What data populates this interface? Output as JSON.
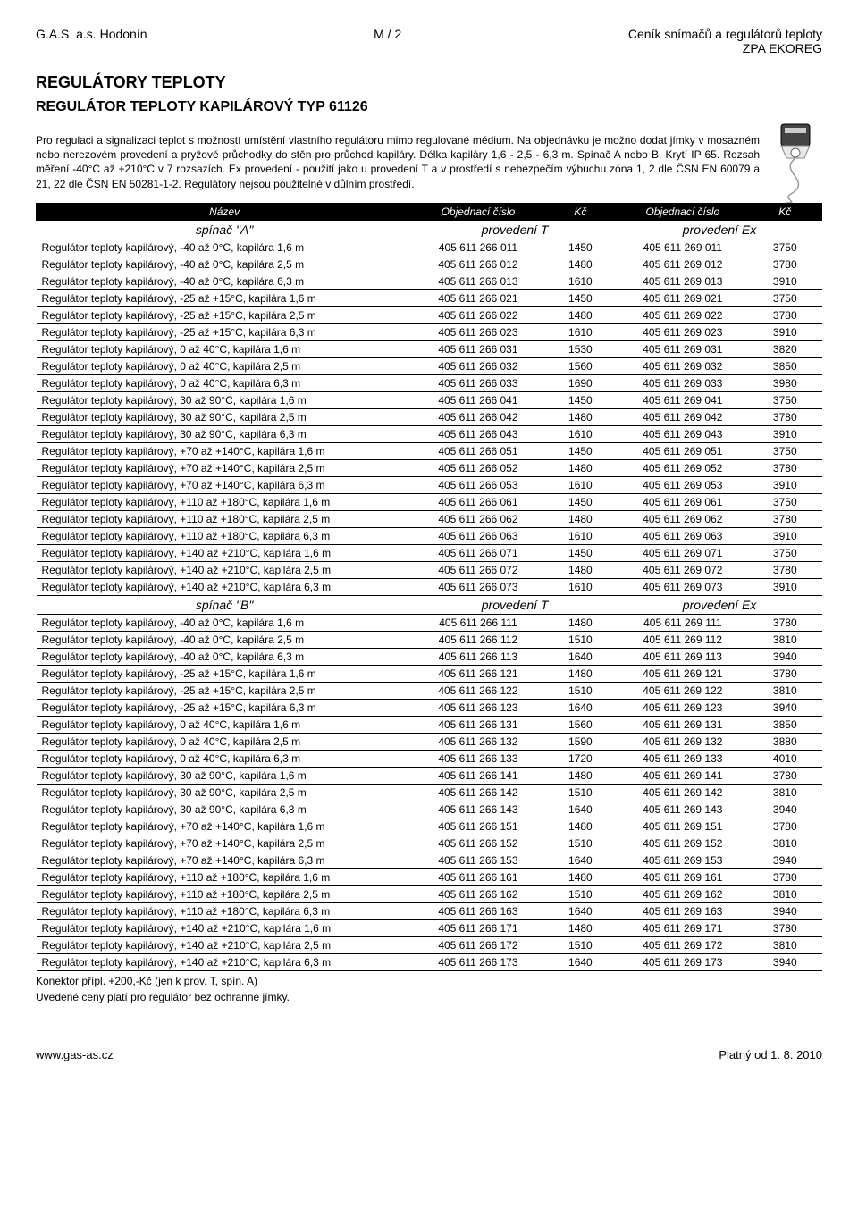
{
  "header": {
    "left": "G.A.S. a.s. Hodonín",
    "center": "M / 2",
    "right_line1": "Ceník snímačů a regulátorů teploty",
    "right_line2": "ZPA EKOREG"
  },
  "section_title": "REGULÁTORY TEPLOTY",
  "product_title": "REGULÁTOR TEPLOTY KAPILÁROVÝ TYP 61126",
  "intro": "Pro regulaci a signalizaci teplot s možností umístění vlastního regulátoru mimo regulované médium. Na objednávku je možno dodat jímky v mosazném nebo nerezovém provedení a pryžové průchodky do stěn pro průchod kapiláry. Délka kapiláry 1,6 - 2,5 - 6,3 m. Spínač A nebo B. Krytí IP 65. Rozsah měření -40°C až +210°C v 7 rozsazích. Ex provedení - použití jako u provedení T a v prostředí s nebezpečím výbuchu zóna 1, 2 dle ČSN EN 60079 a 21, 22 dle ČSN EN 50281-1-2. Regulátory nejsou použitelné v důlním prostředí.",
  "table": {
    "head": {
      "name": "Název",
      "code1": "Objednací číslo",
      "price1": "Kč",
      "code2": "Objednací číslo",
      "price2": "Kč"
    },
    "subhead_a": {
      "name": "spínač \"A\"",
      "prov1": "provedení T",
      "prov2": "provedení Ex"
    },
    "subhead_b": {
      "name": "spínač \"B\"",
      "prov1": "provedení T",
      "prov2": "provedení Ex"
    },
    "rows_a": [
      {
        "n": "Regulátor teploty kapilárový, -40 až 0°C, kapilára 1,6 m",
        "c1": "405 611 266 011",
        "p1": "1450",
        "c2": "405 611 269 011",
        "p2": "3750"
      },
      {
        "n": "Regulátor teploty kapilárový, -40 až 0°C, kapilára 2,5 m",
        "c1": "405 611 266 012",
        "p1": "1480",
        "c2": "405 611 269 012",
        "p2": "3780"
      },
      {
        "n": "Regulátor teploty kapilárový, -40 až 0°C, kapilára 6,3 m",
        "c1": "405 611 266 013",
        "p1": "1610",
        "c2": "405 611 269 013",
        "p2": "3910"
      },
      {
        "n": "Regulátor teploty kapilárový, -25 až +15°C, kapilára 1,6 m",
        "c1": "405 611 266 021",
        "p1": "1450",
        "c2": "405 611 269 021",
        "p2": "3750"
      },
      {
        "n": "Regulátor teploty kapilárový, -25 až +15°C, kapilára 2,5 m",
        "c1": "405 611 266 022",
        "p1": "1480",
        "c2": "405 611 269 022",
        "p2": "3780"
      },
      {
        "n": "Regulátor teploty kapilárový, -25 až +15°C, kapilára 6,3 m",
        "c1": "405 611 266 023",
        "p1": "1610",
        "c2": "405 611 269 023",
        "p2": "3910"
      },
      {
        "n": "Regulátor teploty kapilárový, 0 až 40°C, kapilára 1,6 m",
        "c1": "405 611 266 031",
        "p1": "1530",
        "c2": "405 611 269 031",
        "p2": "3820"
      },
      {
        "n": "Regulátor teploty kapilárový, 0 až 40°C, kapilára 2,5 m",
        "c1": "405 611 266 032",
        "p1": "1560",
        "c2": "405 611 269 032",
        "p2": "3850"
      },
      {
        "n": "Regulátor teploty kapilárový, 0 až 40°C, kapilára 6,3 m",
        "c1": "405 611 266 033",
        "p1": "1690",
        "c2": "405 611 269 033",
        "p2": "3980"
      },
      {
        "n": "Regulátor teploty kapilárový, 30 až 90°C, kapilára 1,6 m",
        "c1": "405 611 266 041",
        "p1": "1450",
        "c2": "405 611 269 041",
        "p2": "3750"
      },
      {
        "n": "Regulátor teploty kapilárový, 30 až 90°C, kapilára 2,5 m",
        "c1": "405 611 266 042",
        "p1": "1480",
        "c2": "405 611 269 042",
        "p2": "3780"
      },
      {
        "n": "Regulátor teploty kapilárový, 30 až 90°C, kapilára 6,3 m",
        "c1": "405 611 266 043",
        "p1": "1610",
        "c2": "405 611 269 043",
        "p2": "3910"
      },
      {
        "n": "Regulátor teploty kapilárový, +70 až +140°C, kapilára 1,6 m",
        "c1": "405 611 266 051",
        "p1": "1450",
        "c2": "405 611 269 051",
        "p2": "3750"
      },
      {
        "n": "Regulátor teploty kapilárový, +70 až +140°C, kapilára 2,5 m",
        "c1": "405 611 266 052",
        "p1": "1480",
        "c2": "405 611 269 052",
        "p2": "3780"
      },
      {
        "n": "Regulátor teploty kapilárový, +70 až +140°C, kapilára 6,3 m",
        "c1": "405 611 266 053",
        "p1": "1610",
        "c2": "405 611 269 053",
        "p2": "3910"
      },
      {
        "n": "Regulátor teploty kapilárový, +110 až +180°C, kapilára 1,6 m",
        "c1": "405 611 266 061",
        "p1": "1450",
        "c2": "405 611 269 061",
        "p2": "3750"
      },
      {
        "n": "Regulátor teploty kapilárový, +110 až +180°C, kapilára 2,5 m",
        "c1": "405 611 266 062",
        "p1": "1480",
        "c2": "405 611 269 062",
        "p2": "3780"
      },
      {
        "n": "Regulátor teploty kapilárový, +110 až +180°C, kapilára 6,3 m",
        "c1": "405 611 266 063",
        "p1": "1610",
        "c2": "405 611 269 063",
        "p2": "3910"
      },
      {
        "n": "Regulátor teploty kapilárový, +140 až +210°C, kapilára 1,6 m",
        "c1": "405 611 266 071",
        "p1": "1450",
        "c2": "405 611 269 071",
        "p2": "3750"
      },
      {
        "n": "Regulátor teploty kapilárový, +140 až +210°C, kapilára 2,5 m",
        "c1": "405 611 266 072",
        "p1": "1480",
        "c2": "405 611 269 072",
        "p2": "3780"
      },
      {
        "n": "Regulátor teploty kapilárový, +140 až +210°C, kapilára 6,3 m",
        "c1": "405 611 266 073",
        "p1": "1610",
        "c2": "405 611 269 073",
        "p2": "3910"
      }
    ],
    "rows_b": [
      {
        "n": "Regulátor teploty kapilárový, -40 až 0°C, kapilára 1,6 m",
        "c1": "405 611 266 111",
        "p1": "1480",
        "c2": "405 611 269 111",
        "p2": "3780"
      },
      {
        "n": "Regulátor teploty kapilárový, -40 až 0°C, kapilára 2,5 m",
        "c1": "405 611 266 112",
        "p1": "1510",
        "c2": "405 611 269 112",
        "p2": "3810"
      },
      {
        "n": "Regulátor teploty kapilárový, -40 až 0°C, kapilára 6,3 m",
        "c1": "405 611 266 113",
        "p1": "1640",
        "c2": "405 611 269 113",
        "p2": "3940"
      },
      {
        "n": "Regulátor teploty kapilárový, -25 až +15°C, kapilára 1,6 m",
        "c1": "405 611 266 121",
        "p1": "1480",
        "c2": "405 611 269 121",
        "p2": "3780"
      },
      {
        "n": "Regulátor teploty kapilárový, -25 až +15°C, kapilára 2,5 m",
        "c1": "405 611 266 122",
        "p1": "1510",
        "c2": "405 611 269 122",
        "p2": "3810"
      },
      {
        "n": "Regulátor teploty kapilárový, -25 až +15°C, kapilára 6,3 m",
        "c1": "405 611 266 123",
        "p1": "1640",
        "c2": "405 611 269 123",
        "p2": "3940"
      },
      {
        "n": "Regulátor teploty kapilárový, 0 až 40°C, kapilára 1,6 m",
        "c1": "405 611 266 131",
        "p1": "1560",
        "c2": "405 611 269 131",
        "p2": "3850"
      },
      {
        "n": "Regulátor teploty kapilárový, 0 až 40°C, kapilára 2,5 m",
        "c1": "405 611 266 132",
        "p1": "1590",
        "c2": "405 611 269 132",
        "p2": "3880"
      },
      {
        "n": "Regulátor teploty kapilárový, 0 až 40°C, kapilára 6,3 m",
        "c1": "405 611 266 133",
        "p1": "1720",
        "c2": "405 611 269 133",
        "p2": "4010"
      },
      {
        "n": "Regulátor teploty kapilárový, 30 až 90°C, kapilára 1,6 m",
        "c1": "405 611 266 141",
        "p1": "1480",
        "c2": "405 611 269 141",
        "p2": "3780"
      },
      {
        "n": "Regulátor teploty kapilárový, 30 až 90°C, kapilára 2,5 m",
        "c1": "405 611 266 142",
        "p1": "1510",
        "c2": "405 611 269 142",
        "p2": "3810"
      },
      {
        "n": "Regulátor teploty kapilárový, 30 až 90°C, kapilára 6,3 m",
        "c1": "405 611 266 143",
        "p1": "1640",
        "c2": "405 611 269 143",
        "p2": "3940"
      },
      {
        "n": "Regulátor teploty kapilárový, +70 až +140°C, kapilára 1,6 m",
        "c1": "405 611 266 151",
        "p1": "1480",
        "c2": "405 611 269 151",
        "p2": "3780"
      },
      {
        "n": "Regulátor teploty kapilárový, +70 až +140°C, kapilára 2,5 m",
        "c1": "405 611 266 152",
        "p1": "1510",
        "c2": "405 611 269 152",
        "p2": "3810"
      },
      {
        "n": "Regulátor teploty kapilárový, +70 až +140°C, kapilára 6,3 m",
        "c1": "405 611 266 153",
        "p1": "1640",
        "c2": "405 611 269 153",
        "p2": "3940"
      },
      {
        "n": "Regulátor teploty kapilárový, +110 až +180°C, kapilára 1,6 m",
        "c1": "405 611 266 161",
        "p1": "1480",
        "c2": "405 611 269 161",
        "p2": "3780"
      },
      {
        "n": "Regulátor teploty kapilárový, +110 až +180°C, kapilára 2,5 m",
        "c1": "405 611 266 162",
        "p1": "1510",
        "c2": "405 611 269 162",
        "p2": "3810"
      },
      {
        "n": "Regulátor teploty kapilárový, +110 až +180°C, kapilára 6,3 m",
        "c1": "405 611 266 163",
        "p1": "1640",
        "c2": "405 611 269 163",
        "p2": "3940"
      },
      {
        "n": "Regulátor teploty kapilárový, +140 až +210°C, kapilára 1,6 m",
        "c1": "405 611 266 171",
        "p1": "1480",
        "c2": "405 611 269 171",
        "p2": "3780"
      },
      {
        "n": "Regulátor teploty kapilárový, +140 až +210°C, kapilára 2,5 m",
        "c1": "405 611 266 172",
        "p1": "1510",
        "c2": "405 611 269 172",
        "p2": "3810"
      },
      {
        "n": "Regulátor teploty kapilárový, +140 až +210°C, kapilára 6,3 m",
        "c1": "405 611 266 173",
        "p1": "1640",
        "c2": "405 611 269 173",
        "p2": "3940"
      }
    ]
  },
  "footnote1": "Konektor přípl. +200,-Kč (jen k prov. T, spín. A)",
  "footnote2": "Uvedené ceny platí pro regulátor bez ochranné jímky.",
  "footer": {
    "left": "www.gas-as.cz",
    "right": "Platný od 1. 8. 2010"
  }
}
